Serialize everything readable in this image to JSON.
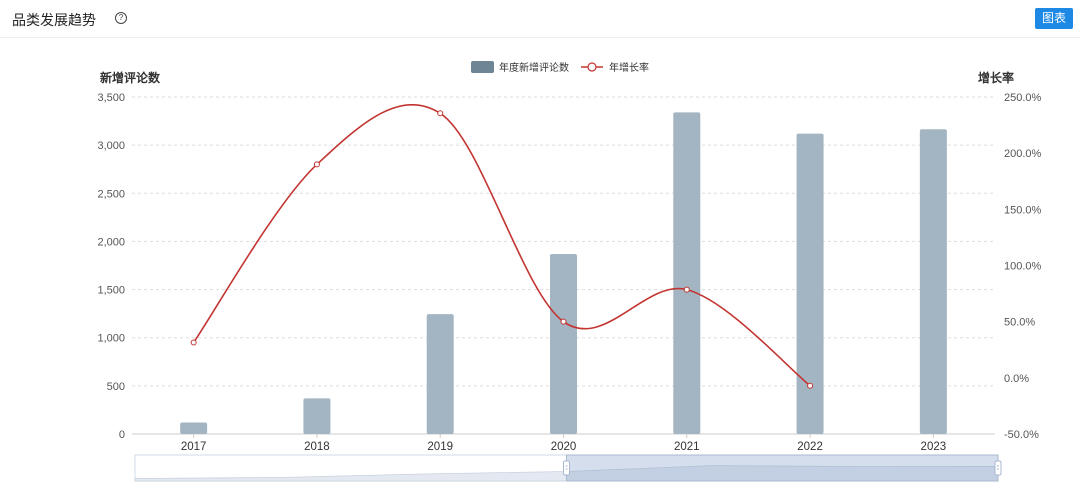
{
  "header": {
    "title": "品类发展趋势",
    "help_icon": "question-circle-icon",
    "chart_button": "图表"
  },
  "chart_data": {
    "type": "bar",
    "categories": [
      "2017",
      "2018",
      "2019",
      "2020",
      "2021",
      "2022",
      "2023"
    ],
    "series": [
      {
        "name": "年度新增评论数",
        "type": "bar",
        "axis": "left",
        "values": [
          120,
          370,
          1245,
          1870,
          3340,
          3120,
          3165
        ],
        "color": "#a3b5c2"
      },
      {
        "name": "年增长率",
        "type": "line",
        "axis": "right",
        "values": [
          31.5,
          190.0,
          235.5,
          50.0,
          78.5,
          -7.0,
          null
        ],
        "color": "#c23531"
      }
    ],
    "ylabel_left": "新增评论数",
    "ylabel_right": "增长率",
    "yticks_left": [
      "0",
      "500",
      "1,000",
      "1,500",
      "2,000",
      "2,500",
      "3,000",
      "3,500"
    ],
    "yticks_right": [
      "-50.0%",
      "0.0%",
      "50.0%",
      "100.0%",
      "150.0%",
      "200.0%",
      "250.0%"
    ],
    "ylim_left": [
      0,
      3500
    ],
    "ylim_right": [
      -50,
      250
    ],
    "grid": true,
    "legend": "top-center",
    "legend_swatch_color": "#6e8595",
    "zoom_slider_range": [
      0.5,
      1.0
    ]
  }
}
